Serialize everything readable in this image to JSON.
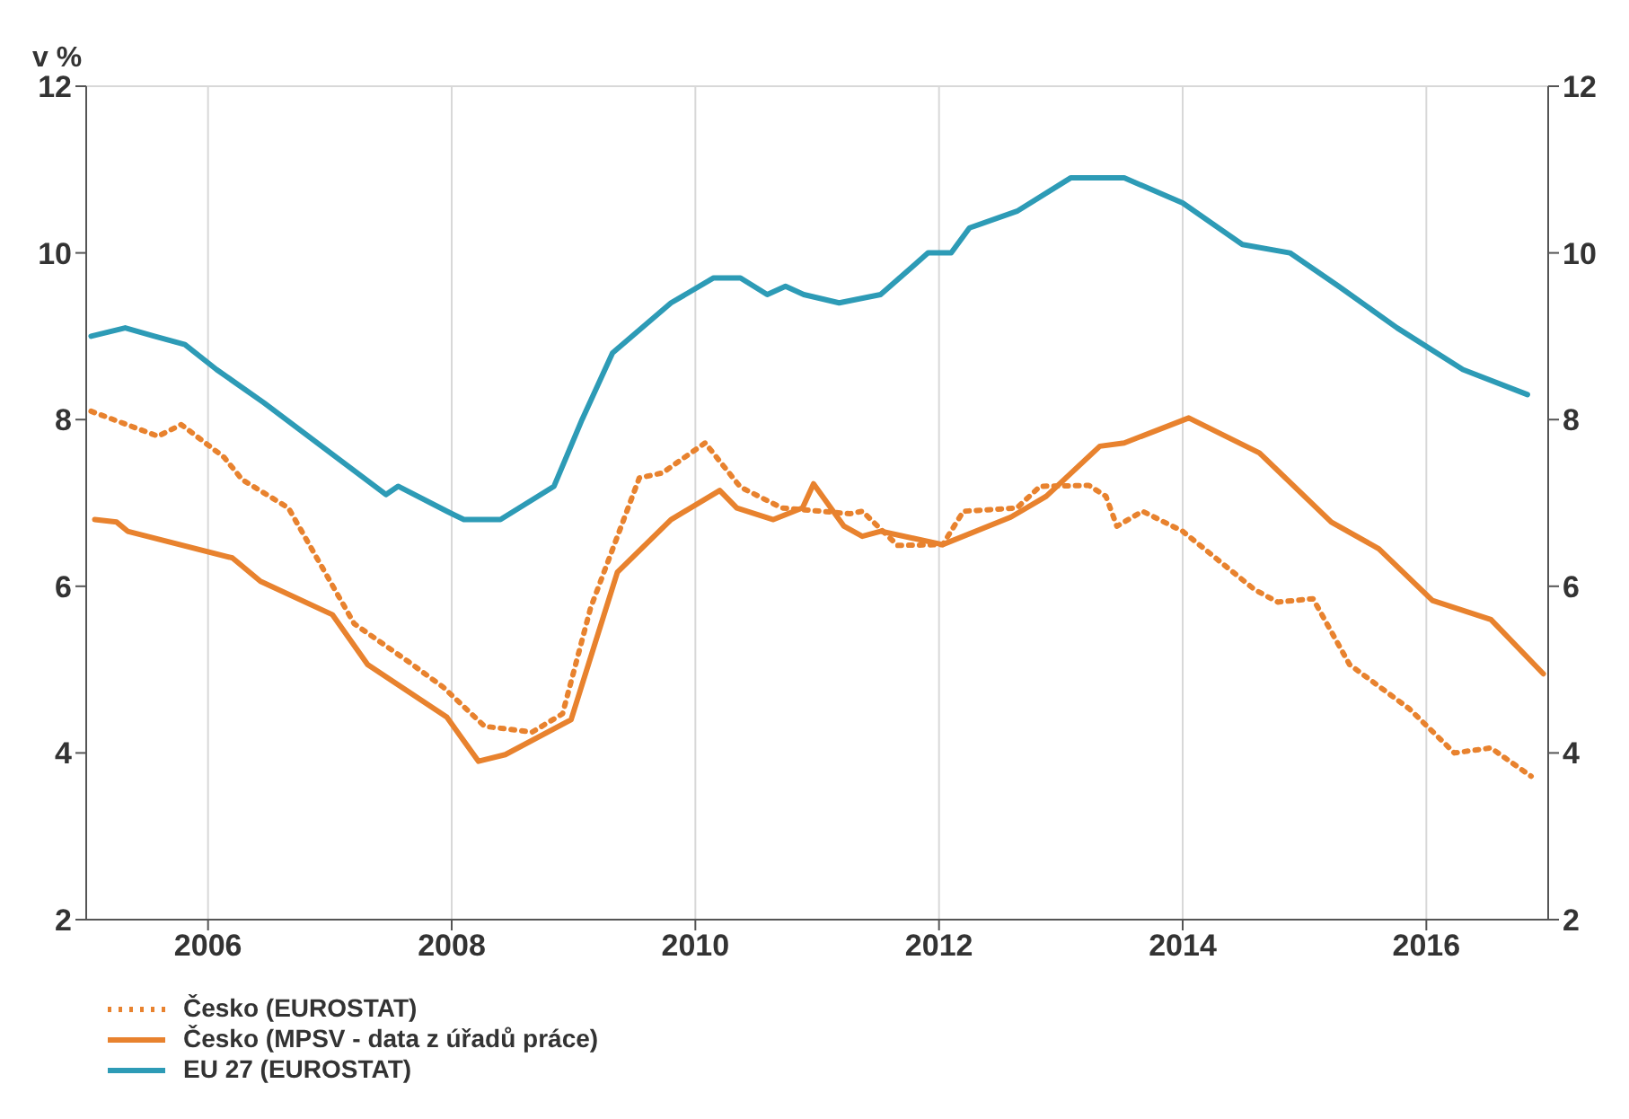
{
  "chart_data": {
    "type": "line",
    "ylabel": "v %",
    "xlim": [
      2005,
      2017
    ],
    "xticks": [
      2006,
      2008,
      2010,
      2012,
      2014,
      2016
    ],
    "ylim": [
      2,
      12
    ],
    "yticks": [
      2,
      4,
      6,
      8,
      10,
      12
    ],
    "y2lim": [
      2,
      12
    ],
    "y2ticks": [
      2,
      4,
      6,
      8,
      10,
      12
    ],
    "grid": true,
    "legend": "bottom left",
    "marker": "none",
    "series": [
      {
        "name": "Česko (EUROSTAT)",
        "color": "#e8822e",
        "line_style": "dotted",
        "x": [
          2005.04,
          2005.59,
          2005.78,
          2006.13,
          2006.28,
          2006.66,
          2007.2,
          2007.64,
          2007.93,
          2008.27,
          2008.66,
          2008.91,
          2009.14,
          2009.54,
          2009.73,
          2010.08,
          2010.37,
          2010.71,
          2011.27,
          2011.37,
          2011.66,
          2012.03,
          2012.2,
          2012.64,
          2012.83,
          2013.23,
          2013.37,
          2013.46,
          2013.67,
          2014.0,
          2014.59,
          2014.78,
          2015.07,
          2015.37,
          2015.86,
          2016.23,
          2016.53,
          2016.86
        ],
        "values": [
          8.1,
          7.8,
          7.94,
          7.55,
          7.28,
          6.94,
          5.55,
          5.1,
          4.79,
          4.32,
          4.25,
          4.47,
          5.74,
          7.3,
          7.36,
          7.72,
          7.19,
          6.94,
          6.87,
          6.9,
          6.49,
          6.5,
          6.9,
          6.94,
          7.2,
          7.21,
          7.08,
          6.72,
          6.9,
          6.66,
          5.96,
          5.81,
          5.85,
          5.06,
          4.53,
          4.0,
          4.06,
          3.72
        ]
      },
      {
        "name": "Česko (MPSV - data z úřadů práce)",
        "color": "#e8822e",
        "line_style": "solid",
        "x": [
          2005.07,
          2005.25,
          2005.34,
          2006.2,
          2006.43,
          2007.02,
          2007.31,
          2007.96,
          2008.22,
          2008.44,
          2008.98,
          2009.36,
          2009.8,
          2010.2,
          2010.34,
          2010.64,
          2010.88,
          2010.97,
          2011.22,
          2011.37,
          2011.52,
          2012.03,
          2012.59,
          2012.88,
          2013.32,
          2013.52,
          2014.05,
          2014.63,
          2015.22,
          2015.61,
          2016.05,
          2016.53,
          2016.96
        ],
        "values": [
          6.8,
          6.77,
          6.66,
          6.34,
          6.06,
          5.66,
          5.06,
          4.43,
          3.9,
          3.98,
          4.4,
          6.17,
          6.8,
          7.15,
          6.94,
          6.8,
          6.94,
          7.23,
          6.72,
          6.6,
          6.66,
          6.5,
          6.83,
          7.08,
          7.68,
          7.72,
          8.02,
          7.6,
          6.77,
          6.45,
          5.83,
          5.6,
          4.95
        ]
      },
      {
        "name": "EU 27 (EUROSTAT)",
        "color": "#2d9bb6",
        "line_style": "solid",
        "x": [
          2005.04,
          2005.32,
          2005.56,
          2005.81,
          2006.07,
          2006.46,
          2007.46,
          2007.56,
          2007.96,
          2008.1,
          2008.4,
          2008.84,
          2009.07,
          2009.32,
          2009.8,
          2010.15,
          2010.37,
          2010.59,
          2010.74,
          2010.89,
          2011.18,
          2011.52,
          2011.91,
          2012.1,
          2012.25,
          2012.64,
          2013.08,
          2013.52,
          2014.0,
          2014.49,
          2014.88,
          2015.28,
          2015.76,
          2016.3,
          2016.83
        ],
        "values": [
          9.0,
          9.1,
          9.0,
          8.9,
          8.6,
          8.2,
          7.1,
          7.2,
          6.9,
          6.8,
          6.8,
          7.2,
          8.0,
          8.8,
          9.4,
          9.7,
          9.7,
          9.5,
          9.6,
          9.5,
          9.4,
          9.5,
          10.0,
          10.0,
          10.3,
          10.5,
          10.9,
          10.9,
          10.6,
          10.1,
          10.0,
          9.6,
          9.1,
          8.6,
          8.3
        ]
      }
    ]
  }
}
